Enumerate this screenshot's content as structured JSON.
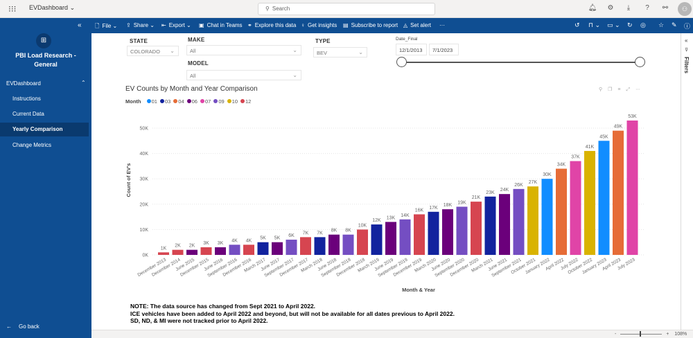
{
  "topbar": {
    "app_name": "EVDashboard",
    "search_placeholder": "Search",
    "icons": [
      "bell-icon",
      "gear-icon",
      "download-icon",
      "help-icon",
      "share-people-icon",
      "avatar"
    ]
  },
  "sidebar": {
    "workspace_name": "PBI Load Research - General",
    "section": "EVDashboard",
    "items": [
      {
        "label": "Instructions",
        "active": false
      },
      {
        "label": "Current Data",
        "active": false
      },
      {
        "label": "Yearly Comparison",
        "active": true
      },
      {
        "label": "Change Metrics",
        "active": false
      }
    ],
    "go_back": "Go back"
  },
  "ribbon": {
    "file": "File",
    "share": "Share",
    "export": "Export",
    "chat": "Chat in Teams",
    "explore": "Explore this data",
    "insights": "Get insights",
    "subscribe": "Subscribe to report",
    "alert": "Set alert",
    "more": "···"
  },
  "slicers": {
    "state": {
      "label": "STATE",
      "value": "COLORADO"
    },
    "make": {
      "label": "MAKE",
      "value": "All"
    },
    "model": {
      "label": "MODEL",
      "value": "All"
    },
    "type": {
      "label": "TYPE",
      "value": "BEV"
    },
    "date": {
      "label": "Date_Final",
      "start": "12/1/2013",
      "end": "7/1/2023"
    }
  },
  "filters_pane": {
    "label": "Filters"
  },
  "chart_data": {
    "type": "bar",
    "title": "EV Counts by Month and Year Comparison",
    "xlabel": "Month & Year",
    "ylabel": "Count of EV's",
    "ylim": [
      0,
      55000
    ],
    "yticks": [
      {
        "value": 0,
        "label": "0K"
      },
      {
        "value": 10000,
        "label": "10K"
      },
      {
        "value": 20000,
        "label": "20K"
      },
      {
        "value": 30000,
        "label": "30K"
      },
      {
        "value": 40000,
        "label": "40K"
      },
      {
        "value": 50000,
        "label": "50K"
      }
    ],
    "grid": true,
    "legend": {
      "title": "Month",
      "position": "top-left",
      "items": [
        {
          "key": "01",
          "color": "#118dff"
        },
        {
          "key": "03",
          "color": "#12239e"
        },
        {
          "key": "04",
          "color": "#e66c37"
        },
        {
          "key": "06",
          "color": "#6b007b"
        },
        {
          "key": "07",
          "color": "#e044a7"
        },
        {
          "key": "09",
          "color": "#744ec2"
        },
        {
          "key": "10",
          "color": "#d9b300"
        },
        {
          "key": "12",
          "color": "#d64550"
        }
      ]
    },
    "categories": [
      "December 2013",
      "December 2014",
      "June 2015",
      "December 2015",
      "June 2016",
      "September 2016",
      "December 2016",
      "March 2017",
      "June 2017",
      "September 2017",
      "December 2017",
      "March 2018",
      "June 2018",
      "September 2018",
      "December 2018",
      "March 2019",
      "June 2019",
      "September 2019",
      "December 2019",
      "March 2020",
      "June 2020",
      "September 2020",
      "December 2020",
      "March 2021",
      "June 2021",
      "September 2021",
      "October 2021",
      "January 2022",
      "April 2022",
      "July 2022",
      "October 2022",
      "January 2023",
      "April 2023",
      "July 2023"
    ],
    "months": [
      "12",
      "12",
      "06",
      "12",
      "06",
      "09",
      "12",
      "03",
      "06",
      "09",
      "12",
      "03",
      "06",
      "09",
      "12",
      "03",
      "06",
      "09",
      "12",
      "03",
      "06",
      "09",
      "12",
      "03",
      "06",
      "09",
      "10",
      "01",
      "04",
      "07",
      "10",
      "01",
      "04",
      "07"
    ],
    "values": [
      1000,
      2000,
      2000,
      3000,
      3000,
      4000,
      4000,
      5000,
      5000,
      6000,
      7000,
      7000,
      8000,
      8000,
      10000,
      12000,
      13000,
      14000,
      16000,
      17000,
      18000,
      19000,
      21000,
      23000,
      24000,
      26000,
      27000,
      30000,
      34000,
      37000,
      41000,
      45000,
      49000,
      53000
    ],
    "data_labels": [
      "1K",
      "2K",
      "2K",
      "3K",
      "3K",
      "4K",
      "4K",
      "5K",
      "5K",
      "6K",
      "7K",
      "7K",
      "8K",
      "8K",
      "10K",
      "12K",
      "13K",
      "14K",
      "16K",
      "17K",
      "18K",
      "19K",
      "21K",
      "23K",
      "24K",
      "26K",
      "27K",
      "30K",
      "34K",
      "37K",
      "41K",
      "45K",
      "49K",
      "53K"
    ]
  },
  "note": {
    "lines": [
      "NOTE: The data source has changed from Sept 2021 to April 2022.",
      "ICE vehicles have been added to April 2022 and beyond, but will not be available for all dates previous to April 2022.",
      "SD, ND, & MI were not tracked prior to April 2022."
    ]
  },
  "statusbar": {
    "zoom": "108%"
  }
}
